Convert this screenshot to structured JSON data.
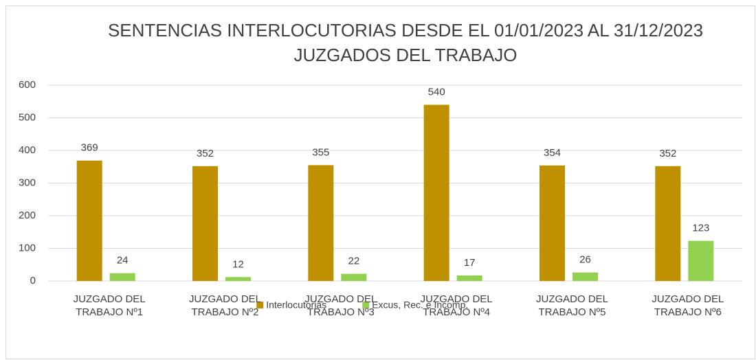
{
  "chart_data": {
    "type": "bar",
    "title": "SENTENCIAS INTERLOCUTORIAS  DESDE EL 01/01/2023 AL 31/12/2023",
    "subtitle": "JUZGADOS DEL TRABAJO",
    "categories": [
      "JUZGADO DEL TRABAJO Nº1",
      "JUZGADO DEL TRABAJO Nº2",
      "JUZGADO DEL TRABAJO Nº3",
      "JUZGADO DEL TRABAJO Nº4",
      "JUZGADO DEL TRABAJO Nº5",
      "JUZGADO DEL TRABAJO Nº6"
    ],
    "series": [
      {
        "name": "Interlocutorias",
        "color": "#bf9000",
        "values": [
          369,
          352,
          355,
          540,
          354,
          352
        ]
      },
      {
        "name": "Excus, Rec. e Incomp.",
        "color": "#92d050",
        "values": [
          24,
          12,
          22,
          17,
          26,
          123
        ]
      }
    ],
    "ylim": [
      0,
      600
    ],
    "yticks": [
      0,
      100,
      200,
      300,
      400,
      500,
      600
    ],
    "grid": true,
    "legend": "bottom"
  }
}
